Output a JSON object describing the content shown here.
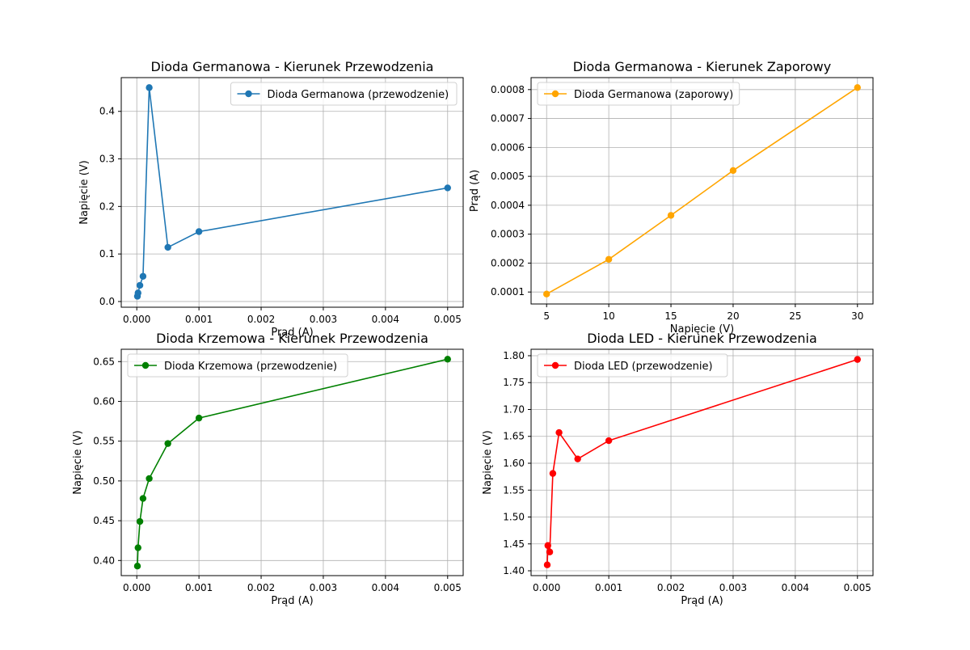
{
  "chart_data": [
    {
      "type": "line",
      "title": "Dioda Germanowa - Kierunek Przewodzenia",
      "xlabel": "Prąd (A)",
      "ylabel": "Napięcie (V)",
      "xlim": [
        -0.00025,
        0.00525
      ],
      "ylim": [
        -0.012,
        0.471
      ],
      "xticks": [
        0,
        0.001,
        0.002,
        0.003,
        0.004,
        0.005
      ],
      "xtick_labels": [
        "0.000",
        "0.001",
        "0.002",
        "0.003",
        "0.004",
        "0.005"
      ],
      "yticks": [
        0,
        0.1,
        0.2,
        0.3,
        0.4
      ],
      "ytick_labels": [
        "0.0",
        "0.1",
        "0.2",
        "0.3",
        "0.4"
      ],
      "grid": true,
      "legend": "upper-right",
      "series": [
        {
          "name": "Dioda Germanowa (przewodzenie)",
          "color": "#1f77b4",
          "x": [
            1e-05,
            2e-05,
            5e-05,
            0.0001,
            0.0002,
            0.0005,
            0.001,
            0.005
          ],
          "y": [
            0.011,
            0.018,
            0.034,
            0.053,
            0.45,
            0.114,
            0.147,
            0.239
          ]
        }
      ]
    },
    {
      "type": "line",
      "title": "Dioda Germanowa - Kierunek Zaporowy",
      "xlabel": "Napięcie (V)",
      "ylabel": "Prąd (A)",
      "xlim": [
        3.75,
        31.25
      ],
      "ylim": [
        5.86e-05,
        0.0008414
      ],
      "xticks": [
        5,
        10,
        15,
        20,
        25,
        30
      ],
      "xtick_labels": [
        "5",
        "10",
        "15",
        "20",
        "25",
        "30"
      ],
      "yticks": [
        0.0001,
        0.0002,
        0.0003,
        0.0004,
        0.0005,
        0.0006,
        0.0007,
        0.0008
      ],
      "ytick_labels": [
        "0.0001",
        "0.0002",
        "0.0003",
        "0.0004",
        "0.0005",
        "0.0006",
        "0.0007",
        "0.0008"
      ],
      "grid": true,
      "legend": "upper-left",
      "series": [
        {
          "name": "Dioda Germanowa (zaporowy)",
          "color": "#ffa500",
          "x": [
            5,
            10,
            15,
            20,
            30
          ],
          "y": [
            9.3e-05,
            0.000213,
            0.000365,
            0.00052,
            0.000807
          ]
        }
      ]
    },
    {
      "type": "line",
      "title": "Dioda Krzemowa - Kierunek Przewodzenia",
      "xlabel": "Prąd (A)",
      "ylabel": "Napięcie (V)",
      "xlim": [
        -0.00025,
        0.00525
      ],
      "ylim": [
        0.381,
        0.6655
      ],
      "xticks": [
        0,
        0.001,
        0.002,
        0.003,
        0.004,
        0.005
      ],
      "xtick_labels": [
        "0.000",
        "0.001",
        "0.002",
        "0.003",
        "0.004",
        "0.005"
      ],
      "yticks": [
        0.4,
        0.45,
        0.5,
        0.55,
        0.6,
        0.65
      ],
      "ytick_labels": [
        "0.40",
        "0.45",
        "0.50",
        "0.55",
        "0.60",
        "0.65"
      ],
      "grid": true,
      "legend": "upper-left",
      "series": [
        {
          "name": "Dioda Krzemowa (przewodzenie)",
          "color": "#008000",
          "x": [
            1e-05,
            2e-05,
            5e-05,
            0.0001,
            0.0002,
            0.0005,
            0.001,
            0.005
          ],
          "y": [
            0.393,
            0.416,
            0.449,
            0.478,
            0.503,
            0.547,
            0.579,
            0.653
          ]
        }
      ]
    },
    {
      "type": "line",
      "title": "Dioda LED - Kierunek Przewodzenia",
      "xlabel": "Prąd (A)",
      "ylabel": "Napięcie (V)",
      "xlim": [
        -0.00025,
        0.00525
      ],
      "ylim": [
        1.391,
        1.812
      ],
      "xticks": [
        0,
        0.001,
        0.002,
        0.003,
        0.004,
        0.005
      ],
      "xtick_labels": [
        "0.000",
        "0.001",
        "0.002",
        "0.003",
        "0.004",
        "0.005"
      ],
      "yticks": [
        1.4,
        1.45,
        1.5,
        1.55,
        1.6,
        1.65,
        1.7,
        1.75,
        1.8
      ],
      "ytick_labels": [
        "1.40",
        "1.45",
        "1.50",
        "1.55",
        "1.60",
        "1.65",
        "1.70",
        "1.75",
        "1.80"
      ],
      "grid": true,
      "legend": "upper-left",
      "series": [
        {
          "name": "Dioda LED (przewodzenie)",
          "color": "#ff0000",
          "x": [
            1e-05,
            2e-05,
            5e-05,
            0.0001,
            0.0002,
            0.0005,
            0.001,
            0.005
          ],
          "y": [
            1.411,
            1.447,
            1.435,
            1.581,
            1.657,
            1.608,
            1.642,
            1.793
          ]
        }
      ]
    }
  ]
}
